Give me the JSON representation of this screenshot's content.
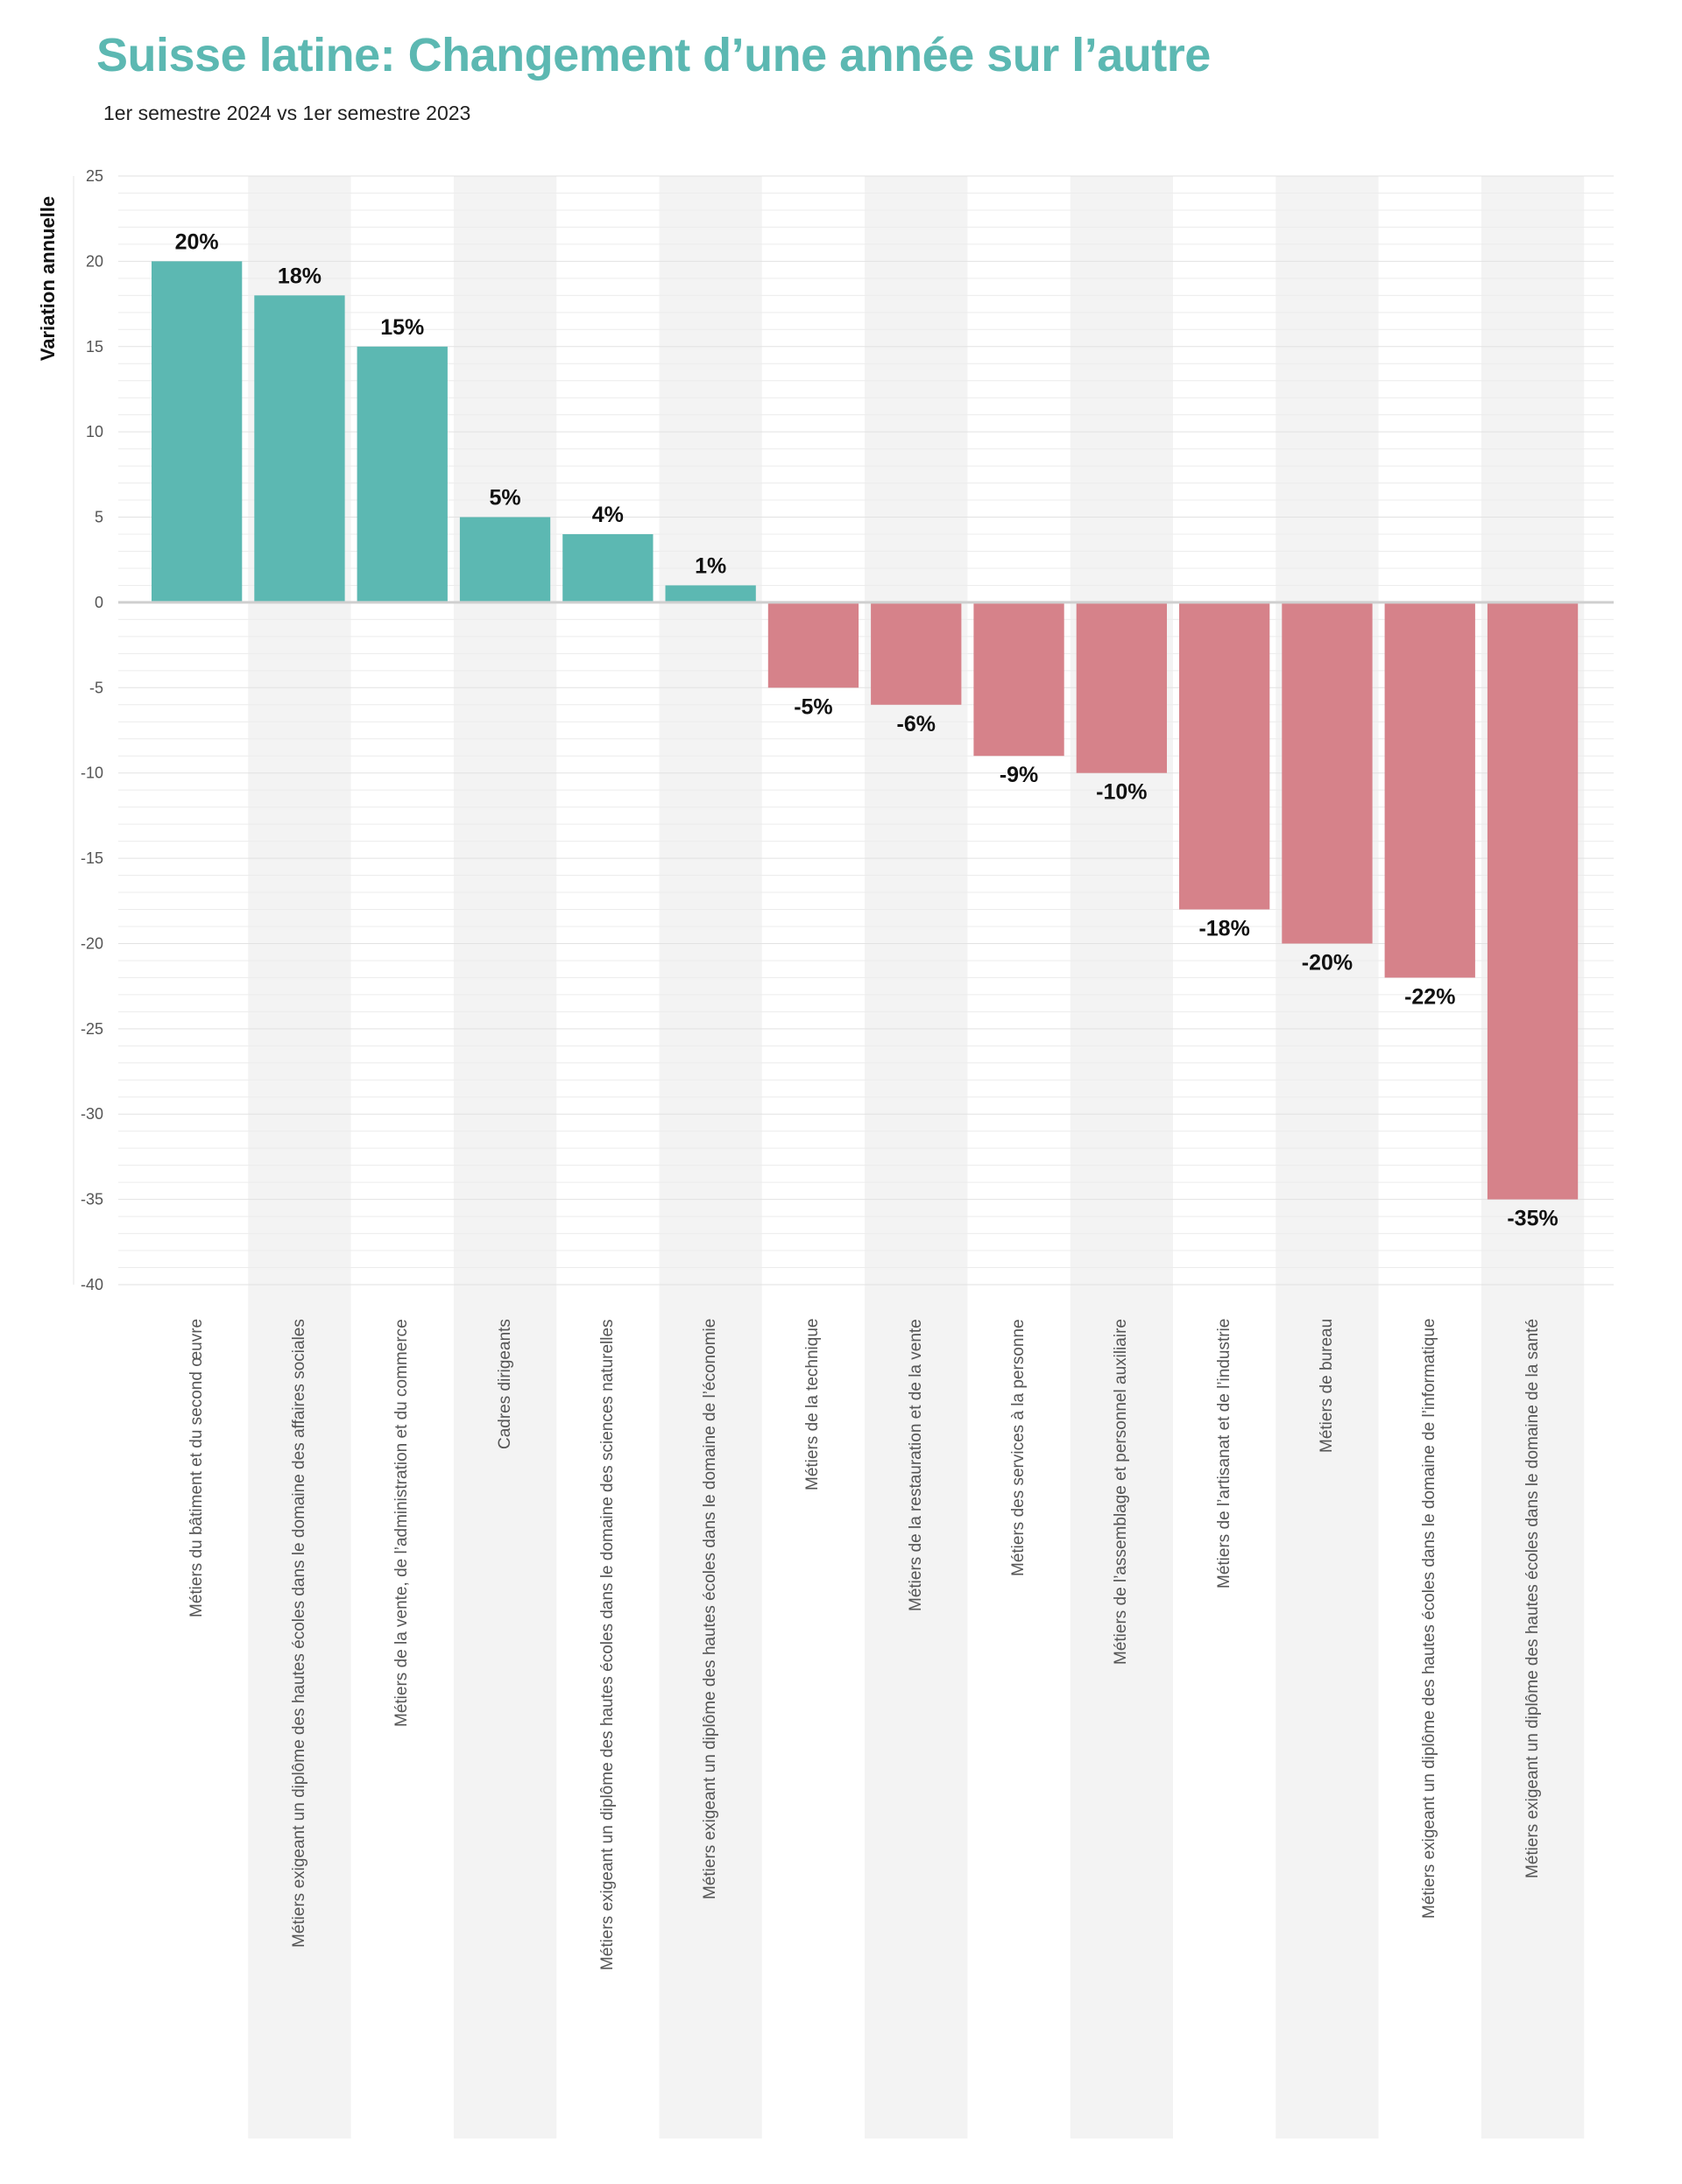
{
  "title": "Suisse latine: Changement d’une année sur l’autre",
  "subtitle": "1er semestre 2024 vs 1er semestre 2023",
  "chart_data": {
    "type": "bar",
    "title": "Suisse latine: Changement d’une année sur l’autre",
    "subtitle": "1er semestre 2024 vs 1er semestre 2023",
    "xlabel": "",
    "ylabel": "Variation annuelle",
    "ylim": [
      -40,
      25
    ],
    "yticks": [
      25,
      20,
      15,
      10,
      5,
      0,
      -5,
      -10,
      -15,
      -20,
      -25,
      -30,
      -35,
      -40
    ],
    "grid": true,
    "colors": {
      "positive": "#5cb8b2",
      "negative": "#d6828a",
      "band": "#f3f3f3"
    },
    "categories": [
      "Métiers du bâtiment et du second œuvre",
      "Métiers exigeant un diplôme des hautes écoles  dans le domaine des affaires sociales",
      "Métiers de la vente, de l’administration et du commerce",
      "Cadres dirigeants",
      "Métiers exigeant un diplôme des hautes écoles  dans le domaine des sciences naturelles",
      "Métiers exigeant un diplôme des hautes écoles  dans le domaine de l’économie",
      "Métiers de la technique",
      "Métiers de la restauration et de la vente",
      "Métiers des services à la personne",
      "Métiers de l’assemblage et personnel auxiliaire",
      "Métiers de l’artisanat et de l’industrie",
      "Métiers de bureau",
      "Métiers exigeant un diplôme des hautes écoles  dans le domaine de l’informatique",
      "Métiers exigeant un diplôme des hautes écoles  dans le domaine de la santé"
    ],
    "values": [
      20,
      18,
      15,
      5,
      4,
      1,
      -5,
      -6,
      -9,
      -10,
      -18,
      -20,
      -22,
      -35
    ],
    "data_labels": [
      "20%",
      "18%",
      "15%",
      "5%",
      "4%",
      "1%",
      "-5%",
      "-6%",
      "-9%",
      "-10%",
      "-18%",
      "-20%",
      "-22%",
      "-35%"
    ]
  }
}
